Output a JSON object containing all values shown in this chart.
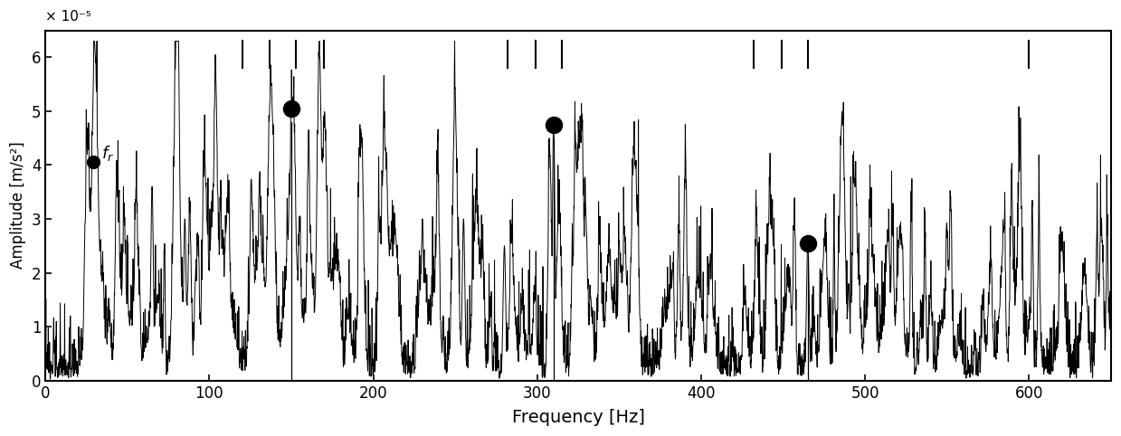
{
  "xlim": [
    0,
    650
  ],
  "ylim": [
    0,
    6.5e-05
  ],
  "ytick_vals": [
    0,
    1e-05,
    2e-05,
    3e-05,
    4e-05,
    5e-05,
    6e-05
  ],
  "ytick_labels": [
    "0",
    "1",
    "2",
    "3",
    "4",
    "5",
    "6"
  ],
  "xticks": [
    0,
    100,
    200,
    300,
    400,
    500,
    600
  ],
  "xlabel": "Frequency [Hz]",
  "ylabel": "Amplitude [m/s²]",
  "scale_label": "× 10⁻⁵",
  "fr_freq": 29.0,
  "fr_amp": 4.05e-05,
  "marked_peaks": [
    {
      "freq": 150.0,
      "amp": 5.05e-05
    },
    {
      "freq": 310.0,
      "amp": 4.75e-05
    },
    {
      "freq": 465.0,
      "amp": 2.55e-05
    }
  ],
  "top_tick_freqs": [
    120,
    137,
    153,
    170,
    282,
    299,
    315,
    432,
    449,
    465,
    600
  ],
  "seed": 12345,
  "line_color": "#000000",
  "bg_color": "#ffffff",
  "figsize": [
    12.39,
    4.82
  ],
  "dpi": 100
}
